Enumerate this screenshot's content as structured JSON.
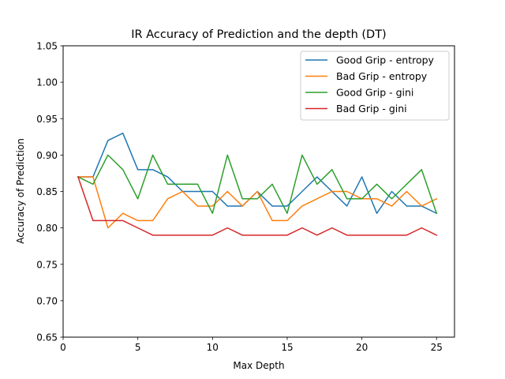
{
  "chart_data": {
    "type": "line",
    "title": "IR Accuracy of Prediction and the depth (DT)",
    "xlabel": "Max Depth",
    "ylabel": "Accuracy of Prediction",
    "xlim": [
      0,
      26.2
    ],
    "ylim": [
      0.65,
      1.05
    ],
    "xticks": [
      0,
      5,
      10,
      15,
      20,
      25
    ],
    "yticks": [
      0.65,
      0.7,
      0.75,
      0.8,
      0.85,
      0.9,
      0.95,
      1.0,
      1.05
    ],
    "xtick_labels": [
      "0",
      "5",
      "10",
      "15",
      "20",
      "25"
    ],
    "ytick_labels": [
      "0.65",
      "0.70",
      "0.75",
      "0.80",
      "0.85",
      "0.90",
      "0.95",
      "1.00",
      "1.05"
    ],
    "grid": false,
    "legend_position": "top-right",
    "x": [
      1,
      2,
      3,
      4,
      5,
      6,
      7,
      8,
      9,
      10,
      11,
      12,
      13,
      14,
      15,
      16,
      17,
      18,
      19,
      20,
      21,
      22,
      23,
      24,
      25
    ],
    "series": [
      {
        "name": "Good Grip - entropy",
        "color": "#1f77b4",
        "values": [
          0.87,
          0.87,
          0.92,
          0.93,
          0.88,
          0.88,
          0.87,
          0.85,
          0.85,
          0.85,
          0.83,
          0.83,
          0.85,
          0.83,
          0.83,
          0.85,
          0.87,
          0.85,
          0.83,
          0.87,
          0.82,
          0.85,
          0.83,
          0.83,
          0.82
        ]
      },
      {
        "name": "Bad Grip - entropy",
        "color": "#ff7f0e",
        "values": [
          0.87,
          0.87,
          0.8,
          0.82,
          0.81,
          0.81,
          0.84,
          0.85,
          0.83,
          0.83,
          0.85,
          0.83,
          0.85,
          0.81,
          0.81,
          0.83,
          0.84,
          0.85,
          0.85,
          0.84,
          0.84,
          0.83,
          0.85,
          0.83,
          0.84
        ]
      },
      {
        "name": "Good Grip - gini",
        "color": "#2ca02c",
        "values": [
          0.87,
          0.86,
          0.9,
          0.88,
          0.84,
          0.9,
          0.86,
          0.86,
          0.86,
          0.82,
          0.9,
          0.84,
          0.84,
          0.86,
          0.82,
          0.9,
          0.86,
          0.88,
          0.84,
          0.84,
          0.86,
          0.84,
          0.86,
          0.88,
          0.82
        ]
      },
      {
        "name": "Bad Grip - gini",
        "color": "#d62728",
        "values": [
          0.87,
          0.81,
          0.81,
          0.81,
          0.8,
          0.79,
          0.79,
          0.79,
          0.79,
          0.79,
          0.8,
          0.79,
          0.79,
          0.79,
          0.79,
          0.8,
          0.79,
          0.8,
          0.79,
          0.79,
          0.79,
          0.79,
          0.79,
          0.8,
          0.79
        ]
      }
    ]
  }
}
